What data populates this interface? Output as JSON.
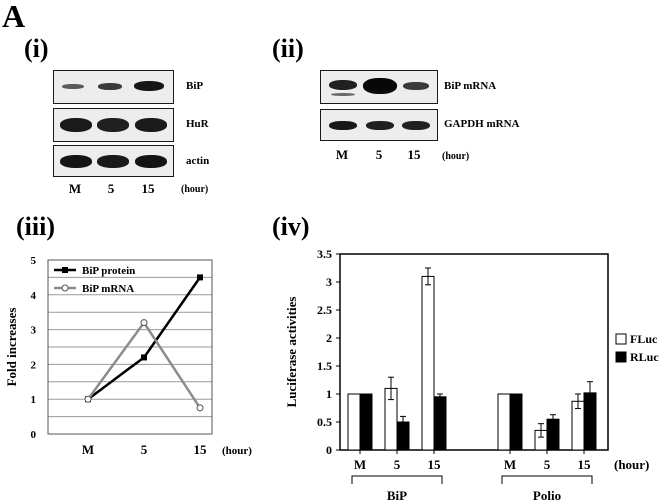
{
  "figure": {
    "letter": "A",
    "panels": {
      "i": {
        "label": "(i)",
        "rows": [
          "BiP",
          "HuR",
          "actin"
        ],
        "lanes": [
          "M",
          "5",
          "15"
        ],
        "unit": "(hour)"
      },
      "ii": {
        "label": "(ii)",
        "rows": [
          "BiP mRNA",
          "GAPDH mRNA"
        ],
        "lanes": [
          "M",
          "5",
          "15"
        ],
        "unit": "(hour)"
      },
      "iii": {
        "label": "(iii)"
      },
      "iv": {
        "label": "(iv)"
      }
    }
  },
  "chart_data": [
    {
      "type": "line",
      "panel": "iii",
      "ylabel": "Fold increases",
      "x": [
        "M",
        "5",
        "15"
      ],
      "x_unit": "(hour)",
      "ylim": [
        0,
        5
      ],
      "yticks": [
        0,
        1,
        2,
        3,
        4,
        5
      ],
      "grid": true,
      "legend_position": "top-left",
      "series": [
        {
          "name": "BiP protein",
          "values": [
            1,
            2.2,
            4.5
          ],
          "color": "#000000",
          "marker": "filled-square"
        },
        {
          "name": "BiP mRNA",
          "values": [
            1,
            3.2,
            0.75
          ],
          "color": "#8c8c8c",
          "marker": "open-circle"
        }
      ]
    },
    {
      "type": "bar",
      "panel": "iv",
      "ylabel": "Luciferase activities",
      "ylim": [
        0,
        3.5
      ],
      "yticks": [
        0,
        0.5,
        1,
        1.5,
        2,
        2.5,
        3,
        3.5
      ],
      "legend_position": "right",
      "groups": [
        {
          "label": "BiP",
          "categories": [
            "M",
            "5",
            "15"
          ]
        },
        {
          "label": "Polio",
          "categories": [
            "M",
            "5",
            "15"
          ]
        }
      ],
      "x_unit": "(hour)",
      "series": [
        {
          "name": "FLuc",
          "fill": "#ffffff",
          "values": [
            1,
            1.1,
            3.1,
            1,
            0.35,
            0.87
          ],
          "errors": [
            0,
            0.2,
            0.15,
            0,
            0.12,
            0.13
          ]
        },
        {
          "name": "RLuc",
          "fill": "#000000",
          "values": [
            1,
            0.5,
            0.95,
            1,
            0.55,
            1.02
          ],
          "errors": [
            0,
            0.1,
            0.05,
            0,
            0.08,
            0.2
          ]
        }
      ]
    }
  ]
}
